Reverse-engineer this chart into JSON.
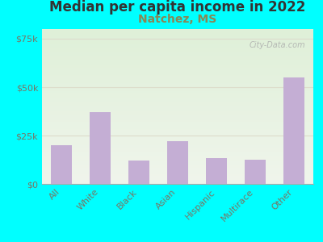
{
  "title": "Median per capita income in 2022",
  "subtitle": "Natchez, MS",
  "categories": [
    "All",
    "White",
    "Black",
    "Asian",
    "Hispanic",
    "Multirace",
    "Other"
  ],
  "values": [
    20000,
    37000,
    12000,
    22000,
    13500,
    12500,
    55000
  ],
  "bar_color": "#c4aed4",
  "ylim": [
    0,
    80000
  ],
  "yticks": [
    0,
    25000,
    50000,
    75000
  ],
  "ytick_labels": [
    "$0",
    "$25k",
    "$50k",
    "$75k"
  ],
  "title_fontsize": 12,
  "title_color": "#333333",
  "subtitle_fontsize": 10,
  "subtitle_color": "#888855",
  "background_outer": "#00FFFF",
  "background_inner_top": "#dff0d8",
  "background_inner_bottom": "#f0f5ec",
  "watermark": "City-Data.com",
  "xlabel_rotation": 45,
  "tick_label_color": "#777766",
  "grid_color": "#ddddcc"
}
